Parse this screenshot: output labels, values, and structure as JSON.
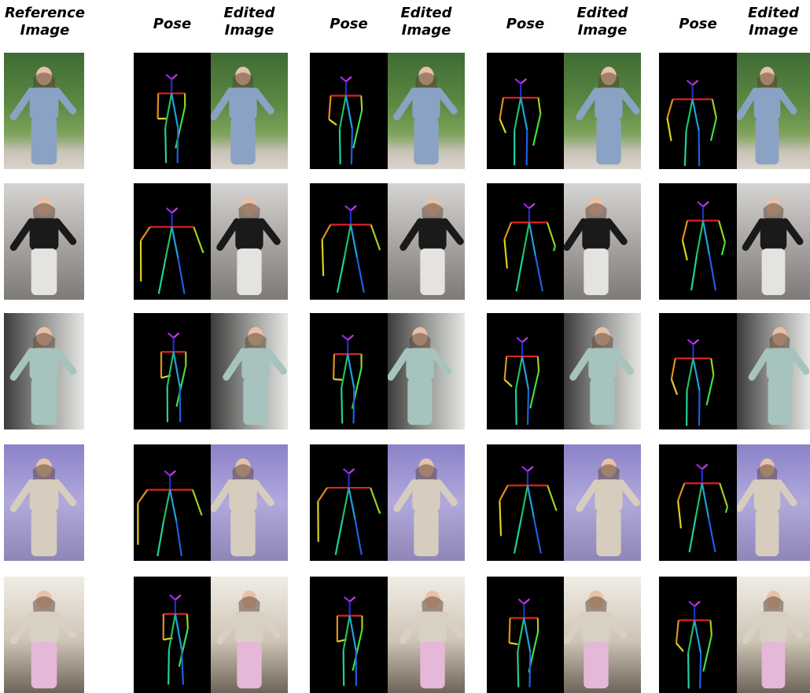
{
  "header": {
    "reference": "Reference Image",
    "pairs": [
      {
        "pose": "Pose",
        "edited": "Edited Image"
      },
      {
        "pose": "Pose",
        "edited": "Edited Image"
      },
      {
        "pose": "Pose",
        "edited": "Edited Image"
      },
      {
        "pose": "Pose",
        "edited": "Edited Image"
      }
    ]
  }
}
